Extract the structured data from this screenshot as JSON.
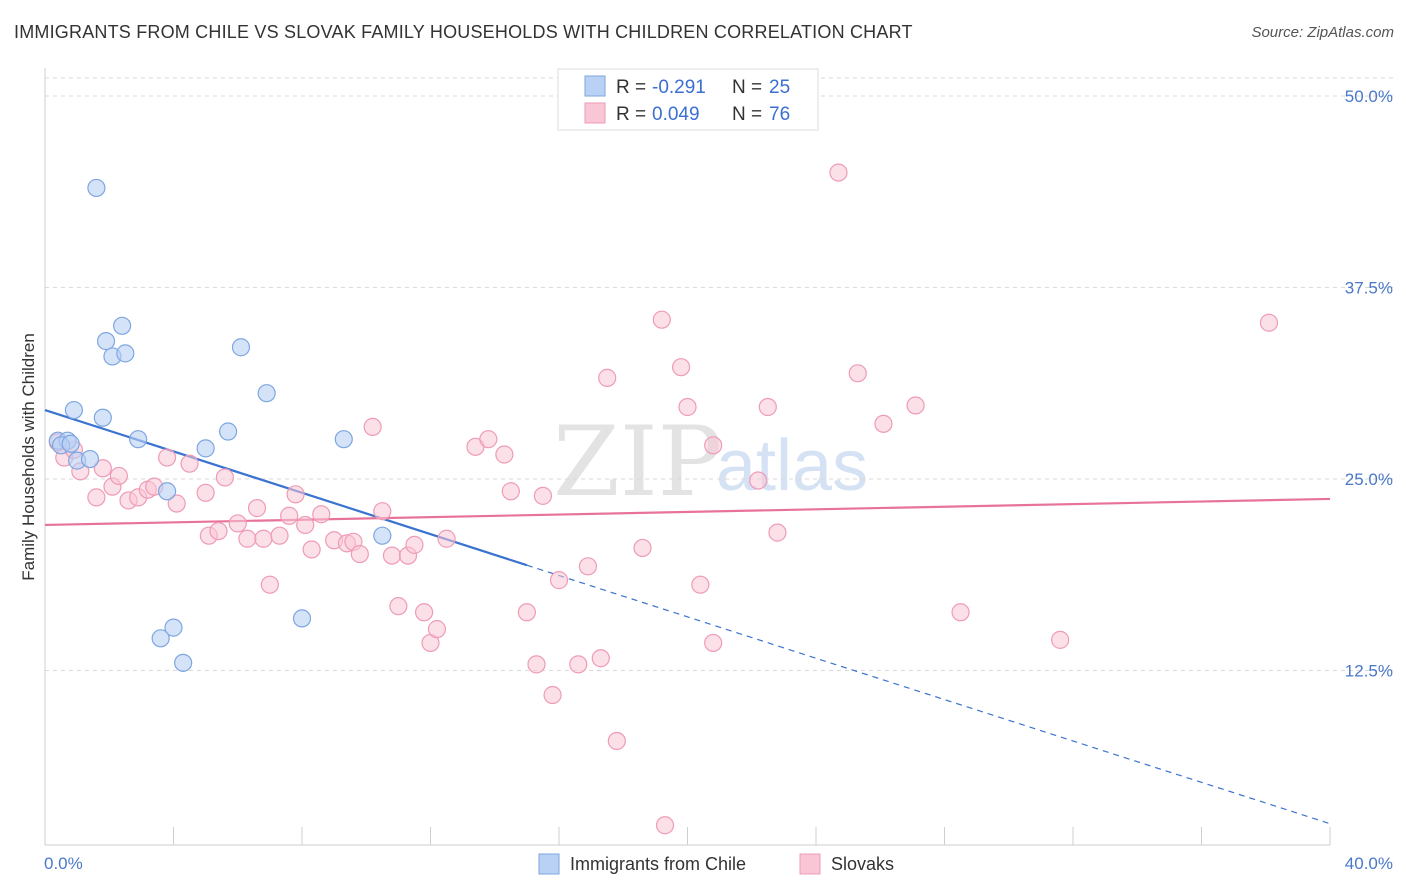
{
  "title": "IMMIGRANTS FROM CHILE VS SLOVAK FAMILY HOUSEHOLDS WITH CHILDREN CORRELATION CHART",
  "source": "Source: ZipAtlas.com",
  "watermark": {
    "zip": "ZIP",
    "atlas": "atlas"
  },
  "legend": {
    "r_label": "R =",
    "n_label": "N =",
    "rows": [
      {
        "r": "-0.291",
        "n": "25"
      },
      {
        "r": "0.049",
        "n": "76"
      }
    ]
  },
  "bottom_legend": [
    "Immigrants from Chile",
    "Slovaks"
  ],
  "colors": {
    "chile_fill": "#b9d1f5",
    "chile_stroke": "#7ea6e0",
    "chile_line": "#3a73d0",
    "slovak_fill": "#f9c6d6",
    "slovak_stroke": "#ee9bb7",
    "slovak_line": "#e8739a"
  },
  "chart_data": {
    "type": "scatter",
    "title": "IMMIGRANTS FROM CHILE VS SLOVAK FAMILY HOUSEHOLDS WITH CHILDREN CORRELATION CHART",
    "xlabel": "",
    "ylabel": "Family Households with Children",
    "xlim": [
      0,
      40
    ],
    "ylim": [
      0,
      52
    ],
    "x_tick_labels": [
      "0.0%",
      "40.0%"
    ],
    "y_ticks": [
      12.5,
      25.0,
      37.5,
      50.0
    ],
    "y_tick_labels": [
      "12.5%",
      "25.0%",
      "37.5%",
      "50.0%"
    ],
    "series": [
      {
        "name": "Immigrants from Chile",
        "r": -0.291,
        "n": 25,
        "points": [
          [
            0.4,
            27.5
          ],
          [
            0.7,
            27.5
          ],
          [
            0.9,
            29.5
          ],
          [
            1.0,
            26.2
          ],
          [
            1.4,
            26.3
          ],
          [
            1.8,
            29.0
          ],
          [
            1.6,
            44.0
          ],
          [
            1.9,
            34.0
          ],
          [
            2.1,
            33.0
          ],
          [
            2.4,
            35.0
          ],
          [
            2.5,
            33.2
          ],
          [
            2.9,
            27.6
          ],
          [
            3.6,
            14.6
          ],
          [
            3.8,
            24.2
          ],
          [
            4.0,
            15.3
          ],
          [
            4.3,
            13.0
          ],
          [
            5.0,
            27.0
          ],
          [
            5.7,
            28.1
          ],
          [
            6.1,
            33.6
          ],
          [
            6.9,
            30.6
          ],
          [
            8.0,
            15.9
          ],
          [
            9.3,
            27.6
          ],
          [
            10.5,
            21.3
          ],
          [
            0.5,
            27.2
          ],
          [
            0.8,
            27.3
          ]
        ],
        "trend": {
          "x_start": 0,
          "y_start": 29.5,
          "x_solid_end": 15,
          "x_end": 40,
          "y_end": 2.5
        }
      },
      {
        "name": "Slovaks",
        "r": 0.049,
        "n": 76,
        "points": [
          [
            0.4,
            27.4
          ],
          [
            0.6,
            26.4
          ],
          [
            0.9,
            26.9
          ],
          [
            1.1,
            25.5
          ],
          [
            1.6,
            23.8
          ],
          [
            1.8,
            25.7
          ],
          [
            2.1,
            24.5
          ],
          [
            2.3,
            25.2
          ],
          [
            2.6,
            23.6
          ],
          [
            2.9,
            23.8
          ],
          [
            3.2,
            24.3
          ],
          [
            3.4,
            24.5
          ],
          [
            3.8,
            26.4
          ],
          [
            4.1,
            23.4
          ],
          [
            4.5,
            26.0
          ],
          [
            5.0,
            24.1
          ],
          [
            5.1,
            21.3
          ],
          [
            5.4,
            21.6
          ],
          [
            5.6,
            25.1
          ],
          [
            6.0,
            22.1
          ],
          [
            6.3,
            21.1
          ],
          [
            6.6,
            23.1
          ],
          [
            6.8,
            21.1
          ],
          [
            7.0,
            18.1
          ],
          [
            7.3,
            21.3
          ],
          [
            7.6,
            22.6
          ],
          [
            7.8,
            24.0
          ],
          [
            8.1,
            22.0
          ],
          [
            8.3,
            20.4
          ],
          [
            8.6,
            22.7
          ],
          [
            9.0,
            21.0
          ],
          [
            9.4,
            20.8
          ],
          [
            9.6,
            20.9
          ],
          [
            9.8,
            20.1
          ],
          [
            10.2,
            28.4
          ],
          [
            10.5,
            22.9
          ],
          [
            10.8,
            20.0
          ],
          [
            11.3,
            20.0
          ],
          [
            11.0,
            16.7
          ],
          [
            11.5,
            20.7
          ],
          [
            11.8,
            16.3
          ],
          [
            12.0,
            14.3
          ],
          [
            12.2,
            15.2
          ],
          [
            12.5,
            21.1
          ],
          [
            13.4,
            27.1
          ],
          [
            13.8,
            27.6
          ],
          [
            14.3,
            26.6
          ],
          [
            14.5,
            24.2
          ],
          [
            15.0,
            16.3
          ],
          [
            15.3,
            12.9
          ],
          [
            15.5,
            23.9
          ],
          [
            15.8,
            10.9
          ],
          [
            16.0,
            18.4
          ],
          [
            16.6,
            12.9
          ],
          [
            16.9,
            19.3
          ],
          [
            17.3,
            13.3
          ],
          [
            17.5,
            31.6
          ],
          [
            17.8,
            7.9
          ],
          [
            18.6,
            20.5
          ],
          [
            19.2,
            35.4
          ],
          [
            19.3,
            2.4
          ],
          [
            19.8,
            32.3
          ],
          [
            20.0,
            29.7
          ],
          [
            20.4,
            18.1
          ],
          [
            20.8,
            27.2
          ],
          [
            20.8,
            14.3
          ],
          [
            22.2,
            24.9
          ],
          [
            22.5,
            29.7
          ],
          [
            22.8,
            21.5
          ],
          [
            24.7,
            45.0
          ],
          [
            25.3,
            31.9
          ],
          [
            26.1,
            28.6
          ],
          [
            27.1,
            29.8
          ],
          [
            28.5,
            16.3
          ],
          [
            31.6,
            14.5
          ],
          [
            38.1,
            35.2
          ]
        ],
        "trend": {
          "x_start": 0,
          "y_start": 22.0,
          "x_end": 40,
          "y_end": 23.7
        }
      }
    ],
    "legend_position": "top-center",
    "grid": true
  }
}
